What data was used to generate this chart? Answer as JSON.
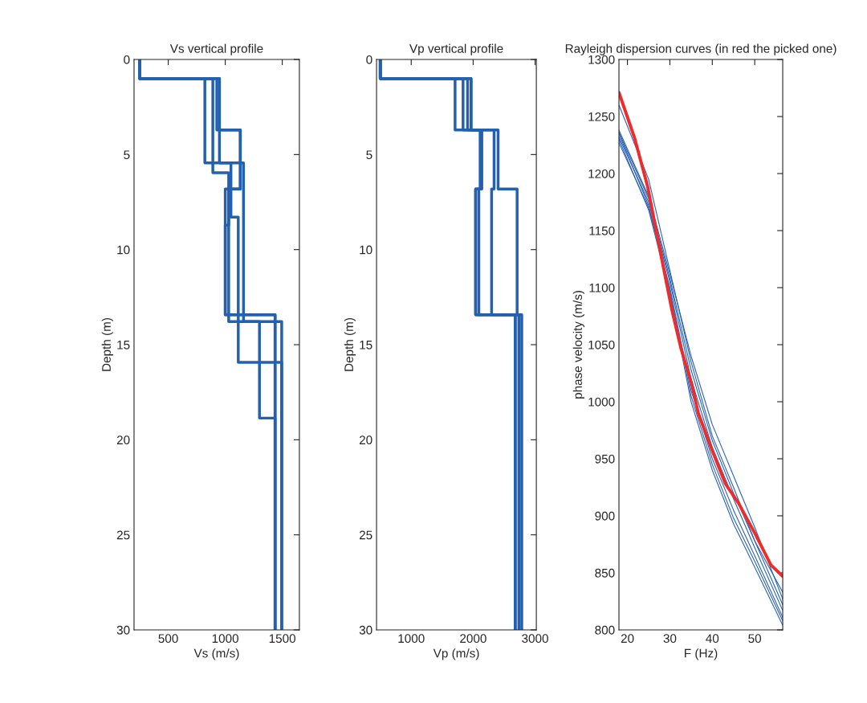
{
  "chart_data": [
    {
      "type": "line",
      "title": "Vs vertical profile",
      "xlabel": "Vs (m/s)",
      "ylabel": "Depth (m)",
      "xlim": [
        200,
        1650
      ],
      "xticks": [
        500,
        1000,
        1500
      ],
      "ylim": [
        30,
        0
      ],
      "yticks": [
        0,
        5,
        10,
        15,
        20,
        25,
        30
      ],
      "series": [
        {
          "color": "#2361b0",
          "x": [
            250,
            250,
            821,
            821,
            1160,
            1160,
            1495,
            1495
          ],
          "values": [
            0,
            1,
            1,
            5.44,
            5.44,
            13.78,
            13.78,
            30
          ]
        },
        {
          "color": "#2361b0",
          "x": [
            250,
            250,
            891,
            891,
            1030,
            1030,
            1000,
            1000,
            1437,
            1437
          ],
          "values": [
            0,
            1,
            1,
            5.96,
            5.96,
            8.71,
            8.71,
            13.43,
            13.43,
            30
          ]
        },
        {
          "color": "#2361b0",
          "x": [
            250,
            250,
            949,
            949,
            1132,
            1132,
            1030,
            1030,
            1300,
            1300,
            1437,
            1437
          ],
          "values": [
            0,
            1,
            1,
            3.71,
            3.71,
            6.81,
            6.81,
            13.78,
            13.78,
            18.86,
            18.86,
            30
          ]
        },
        {
          "color": "#2361b0",
          "x": [
            250,
            250,
            949,
            949,
            1050,
            1050,
            1114,
            1114,
            1495,
            1495
          ],
          "values": [
            0,
            1,
            1,
            5.44,
            5.44,
            8.29,
            8.29,
            15.93,
            15.93,
            30
          ]
        },
        {
          "color": "#2361b0",
          "x": [
            250,
            250,
            926,
            926,
            1132,
            1132,
            1000,
            1000,
            1437,
            1437
          ],
          "values": [
            0,
            1,
            1,
            3.71,
            3.71,
            6.81,
            6.81,
            13.43,
            13.43,
            30
          ]
        }
      ]
    },
    {
      "type": "line",
      "title": "Vp vertical profile",
      "xlabel": "Vp (m/s)",
      "ylabel": "Depth (m)",
      "xlim": [
        440,
        3020
      ],
      "xticks": [
        1000,
        2000,
        3000
      ],
      "ylim": [
        30,
        0
      ],
      "yticks": [
        0,
        5,
        10,
        15,
        20,
        25,
        30
      ],
      "series": [
        {
          "color": "#2361b0",
          "x": [
            500,
            500,
            1708,
            1708,
            2116,
            2116,
            2040,
            2040,
            2680,
            2680
          ],
          "values": [
            0,
            1,
            1,
            3.71,
            3.71,
            6.81,
            6.81,
            13.43,
            13.43,
            30
          ]
        },
        {
          "color": "#2361b0",
          "x": [
            500,
            500,
            1837,
            1837,
            2140,
            2140,
            2092,
            2092,
            2740,
            2740
          ],
          "values": [
            0,
            1,
            1,
            3.71,
            3.71,
            6.81,
            6.81,
            13.43,
            13.43,
            30
          ]
        },
        {
          "color": "#2361b0",
          "x": [
            500,
            500,
            1910,
            1910,
            2338,
            2338,
            2298,
            2298,
            2785,
            2785
          ],
          "values": [
            0,
            1,
            1,
            3.71,
            3.71,
            6.81,
            6.81,
            13.43,
            13.43,
            30
          ]
        },
        {
          "color": "#2361b0",
          "x": [
            500,
            500,
            1966,
            1966,
            2403,
            2403,
            2710,
            2710,
            2740,
            2740
          ],
          "values": [
            0,
            1,
            1,
            3.71,
            3.71,
            6.81,
            6.81,
            13.43,
            13.43,
            30
          ]
        },
        {
          "color": "#2361b0",
          "x": [
            500,
            500,
            1966,
            1966,
            2116,
            2116,
            2040,
            2040,
            2680,
            2680
          ],
          "values": [
            0,
            1,
            1,
            3.71,
            3.71,
            6.81,
            6.81,
            13.43,
            13.43,
            30
          ]
        }
      ]
    },
    {
      "type": "line",
      "title": "Rayleigh dispersion curves (in red the picked one)",
      "xlabel": "F (Hz)",
      "ylabel": "phase velocity (m/s)",
      "xlim": [
        18,
        56.6
      ],
      "xticks": [
        20,
        30,
        40,
        50
      ],
      "ylim": [
        800,
        1300
      ],
      "yticks": [
        800,
        850,
        900,
        950,
        1000,
        1050,
        1100,
        1150,
        1200,
        1250,
        1300
      ],
      "series": [
        {
          "color": "#2a64b4",
          "x": [
            18,
            25,
            30,
            35,
            40,
            45,
            50,
            56.6
          ],
          "values": [
            1260,
            1195,
            1115,
            1035,
            970,
            925,
            878,
            833
          ]
        },
        {
          "color": "#2a64b4",
          "x": [
            18,
            25,
            30,
            35,
            40,
            45,
            50,
            56.6
          ],
          "values": [
            1238,
            1180,
            1112,
            1040,
            980,
            935,
            890,
            827
          ]
        },
        {
          "color": "#2a64b4",
          "x": [
            18,
            25,
            30,
            35,
            40,
            45,
            50,
            56.6
          ],
          "values": [
            1236,
            1178,
            1108,
            1028,
            966,
            920,
            878,
            822
          ]
        },
        {
          "color": "#2a64b4",
          "x": [
            18,
            25,
            30,
            35,
            40,
            45,
            50,
            56.6
          ],
          "values": [
            1232,
            1175,
            1105,
            1020,
            960,
            915,
            872,
            817
          ]
        },
        {
          "color": "#2a64b4",
          "x": [
            18,
            25,
            30,
            35,
            40,
            45,
            50,
            56.6
          ],
          "values": [
            1227,
            1170,
            1100,
            1010,
            950,
            905,
            865,
            811
          ]
        },
        {
          "color": "#2a64b4",
          "x": [
            18,
            25,
            30,
            35,
            40,
            45,
            50,
            56.6
          ],
          "values": [
            1235,
            1172,
            1098,
            1005,
            945,
            898,
            860,
            808
          ]
        },
        {
          "color": "#2a64b4",
          "x": [
            18,
            25,
            30,
            35,
            40,
            45,
            50,
            56.6
          ],
          "values": [
            1230,
            1168,
            1095,
            1000,
            940,
            893,
            855,
            804
          ]
        },
        {
          "color": "#ee2c2c",
          "x": [
            18,
            21.7,
            24.8,
            27.4,
            30.5,
            32.6,
            35.2,
            36.7,
            39.9,
            43.1,
            46.2,
            50,
            53.8,
            56.6
          ],
          "values": [
            1271,
            1231,
            1188,
            1138,
            1080,
            1047,
            1015,
            990,
            958,
            928,
            911,
            885,
            857,
            847
          ]
        }
      ]
    }
  ]
}
